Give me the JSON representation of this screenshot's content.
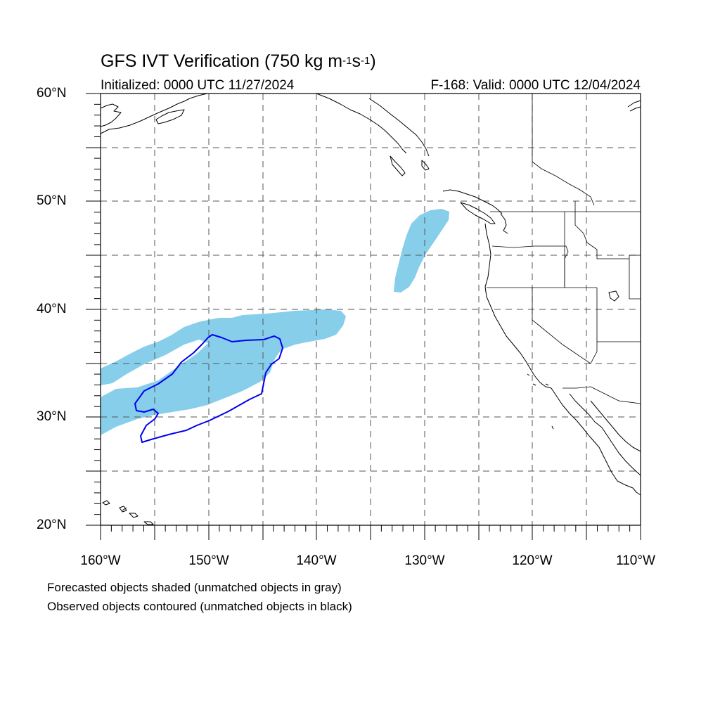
{
  "title": {
    "prefix": "GFS IVT Verification (750 kg m",
    "exp1": "-1",
    "mid": "s",
    "exp2": "-1",
    "suffix": ")"
  },
  "initialized": "Initialized: 0000 UTC 11/27/2024",
  "valid": "F-168: Valid: 0000 UTC 12/04/2024",
  "lat_labels": [
    "60°N",
    "50°N",
    "40°N",
    "30°N",
    "20°N"
  ],
  "lon_labels": [
    "160°W",
    "150°W",
    "140°W",
    "130°W",
    "120°W",
    "110°W"
  ],
  "notes": [
    "Forecasted objects shaded (unmatched objects in gray)",
    "Observed objects contoured (unmatched objects in black)"
  ],
  "colors": {
    "forecast_fill": "#87ceeb",
    "observed_contour": "#0000ee",
    "grid": "#555555",
    "coast": "#000000"
  },
  "map": {
    "lat_range": [
      20,
      60
    ],
    "lon_range": [
      -160,
      -110
    ],
    "grid_lat_step": 5,
    "grid_lon_step": 5,
    "projection": "cylindrical equidistant"
  }
}
